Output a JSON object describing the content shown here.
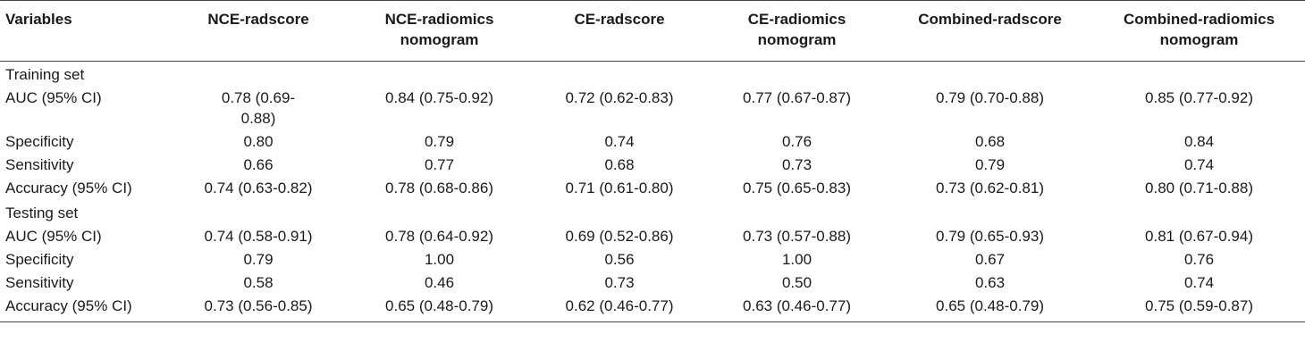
{
  "table": {
    "headers": [
      [
        "Variables"
      ],
      [
        "NCE-radscore"
      ],
      [
        "NCE-radiomics",
        "nomogram"
      ],
      [
        "CE-radscore"
      ],
      [
        "CE-radiomics",
        "nomogram"
      ],
      [
        "Combined-radscore"
      ],
      [
        "Combined-radiomics",
        "nomogram"
      ]
    ],
    "sections": [
      {
        "title": "Training set",
        "rows": [
          {
            "label": "AUC (95% CI)",
            "cells": [
              "0.78 (0.69-0.88)",
              "0.84 (0.75-0.92)",
              "0.72 (0.62-0.83)",
              "0.77 (0.67-0.87)",
              "0.79 (0.70-0.88)",
              "0.85 (0.77-0.92)"
            ]
          },
          {
            "label": "Specificity",
            "cells": [
              "0.80",
              "0.79",
              "0.74",
              "0.76",
              "0.68",
              "0.84"
            ]
          },
          {
            "label": "Sensitivity",
            "cells": [
              "0.66",
              "0.77",
              "0.68",
              "0.73",
              "0.79",
              "0.74"
            ]
          },
          {
            "label": "Accuracy (95% CI)",
            "cells": [
              "0.74 (0.63-0.82)",
              "0.78 (0.68-0.86)",
              "0.71 (0.61-0.80)",
              "0.75 (0.65-0.83)",
              "0.73 (0.62-0.81)",
              "0.80 (0.71-0.88)"
            ]
          }
        ]
      },
      {
        "title": "Testing set",
        "rows": [
          {
            "label": "AUC (95% CI)",
            "cells": [
              "0.74 (0.58-0.91)",
              "0.78 (0.64-0.92)",
              "0.69 (0.52-0.86)",
              "0.73 (0.57-0.88)",
              "0.79 (0.65-0.93)",
              "0.81 (0.67-0.94)"
            ]
          },
          {
            "label": "Specificity",
            "cells": [
              "0.79",
              "1.00",
              "0.56",
              "1.00",
              "0.67",
              "0.76"
            ]
          },
          {
            "label": "Sensitivity",
            "cells": [
              "0.58",
              "0.46",
              "0.73",
              "0.50",
              "0.63",
              "0.74"
            ]
          },
          {
            "label": "Accuracy (95% CI)",
            "cells": [
              "0.73 (0.56-0.85)",
              "0.65 (0.48-0.79)",
              "0.62 (0.46-0.77)",
              "0.63 (0.46-0.77)",
              "0.65 (0.48-0.79)",
              "0.75 (0.59-0.87)"
            ]
          }
        ]
      }
    ]
  }
}
